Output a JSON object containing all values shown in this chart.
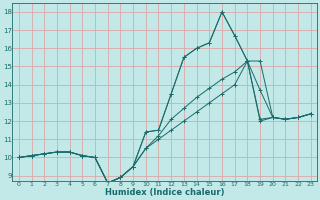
{
  "xlabel": "Humidex (Indice chaleur)",
  "bg_color": "#c2e8e8",
  "grid_color": "#dba8a8",
  "line_color": "#1a6b6b",
  "xlim": [
    -0.5,
    23.5
  ],
  "ylim": [
    8.7,
    18.5
  ],
  "xticks": [
    0,
    1,
    2,
    3,
    4,
    5,
    6,
    7,
    8,
    9,
    10,
    11,
    12,
    13,
    14,
    15,
    16,
    17,
    18,
    19,
    20,
    21,
    22,
    23
  ],
  "yticks": [
    9,
    10,
    11,
    12,
    13,
    14,
    15,
    16,
    17,
    18
  ],
  "lines": [
    [
      10.0,
      10.1,
      10.2,
      10.3,
      10.3,
      10.1,
      10.0,
      8.6,
      8.9,
      9.5,
      11.4,
      11.5,
      13.5,
      15.5,
      16.0,
      16.3,
      18.0,
      16.7,
      15.3,
      12.1,
      12.2,
      12.1,
      12.2,
      12.4
    ],
    [
      10.0,
      10.1,
      10.2,
      10.3,
      10.3,
      10.1,
      10.0,
      8.6,
      8.9,
      9.5,
      11.4,
      11.5,
      13.5,
      15.5,
      16.0,
      16.3,
      18.0,
      16.7,
      15.3,
      13.7,
      12.2,
      12.1,
      12.2,
      12.4
    ],
    [
      10.0,
      10.1,
      10.2,
      10.3,
      10.3,
      10.1,
      10.0,
      8.6,
      8.9,
      9.5,
      10.5,
      11.2,
      12.1,
      12.7,
      13.3,
      13.8,
      14.3,
      14.7,
      15.3,
      15.3,
      12.2,
      12.1,
      12.2,
      12.4
    ],
    [
      10.0,
      10.1,
      10.2,
      10.3,
      10.3,
      10.1,
      10.0,
      8.6,
      8.9,
      9.5,
      10.5,
      11.0,
      11.5,
      12.0,
      12.5,
      13.0,
      13.5,
      14.0,
      15.3,
      12.0,
      12.2,
      12.1,
      12.2,
      12.4
    ]
  ]
}
